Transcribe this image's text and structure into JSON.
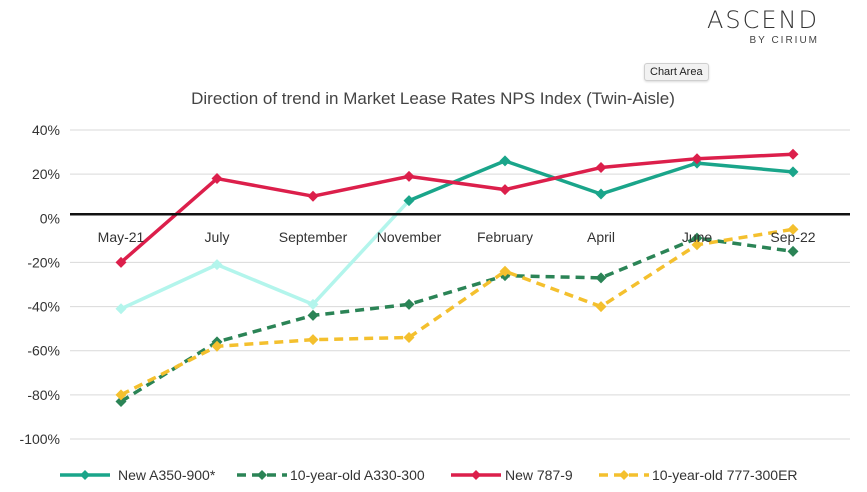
{
  "brand": {
    "name": "ASCEND",
    "sub": "BY CIRIUM"
  },
  "tooltip": "Chart Area",
  "chart_data": {
    "type": "line",
    "title": "Direction of trend in Market Lease Rates NPS Index (Twin-Aisle)",
    "xlabel": "",
    "ylabel": "",
    "categories": [
      "May-21",
      "July",
      "September",
      "November",
      "February",
      "April",
      "June",
      "Sep-22"
    ],
    "ylim": [
      -100,
      40
    ],
    "yticks": [
      40,
      20,
      0,
      -20,
      -40,
      -60,
      -80,
      -100
    ],
    "ytick_labels": [
      "40%",
      "20%",
      "0%",
      "-20%",
      "-40%",
      "-60%",
      "-80%",
      "-100%"
    ],
    "grid": "horizontal",
    "legend": "bottom",
    "series": [
      {
        "name": "New A350-900*",
        "color": "#1aa58a",
        "dash": false,
        "marker": "diamond",
        "values": [
          -41,
          -21,
          -39,
          8,
          26,
          11,
          25,
          21
        ],
        "faded_until": 3,
        "faded_color": "#b3f5ec"
      },
      {
        "name": "10-year-old A330-300",
        "color": "#2b8456",
        "dash": true,
        "marker": "diamond",
        "values": [
          -83,
          -56,
          -44,
          -39,
          -26,
          -27,
          -9,
          -15
        ]
      },
      {
        "name": "New 787-9",
        "color": "#dc1f4b",
        "dash": false,
        "marker": "diamond",
        "values": [
          -20,
          18,
          10,
          19,
          13,
          23,
          27,
          29
        ]
      },
      {
        "name": "10-year-old 777-300ER",
        "color": "#f4c02e",
        "dash": true,
        "marker": "diamond",
        "values": [
          -80,
          -58,
          -55,
          -54,
          -24,
          -40,
          -12,
          -5
        ]
      }
    ]
  }
}
